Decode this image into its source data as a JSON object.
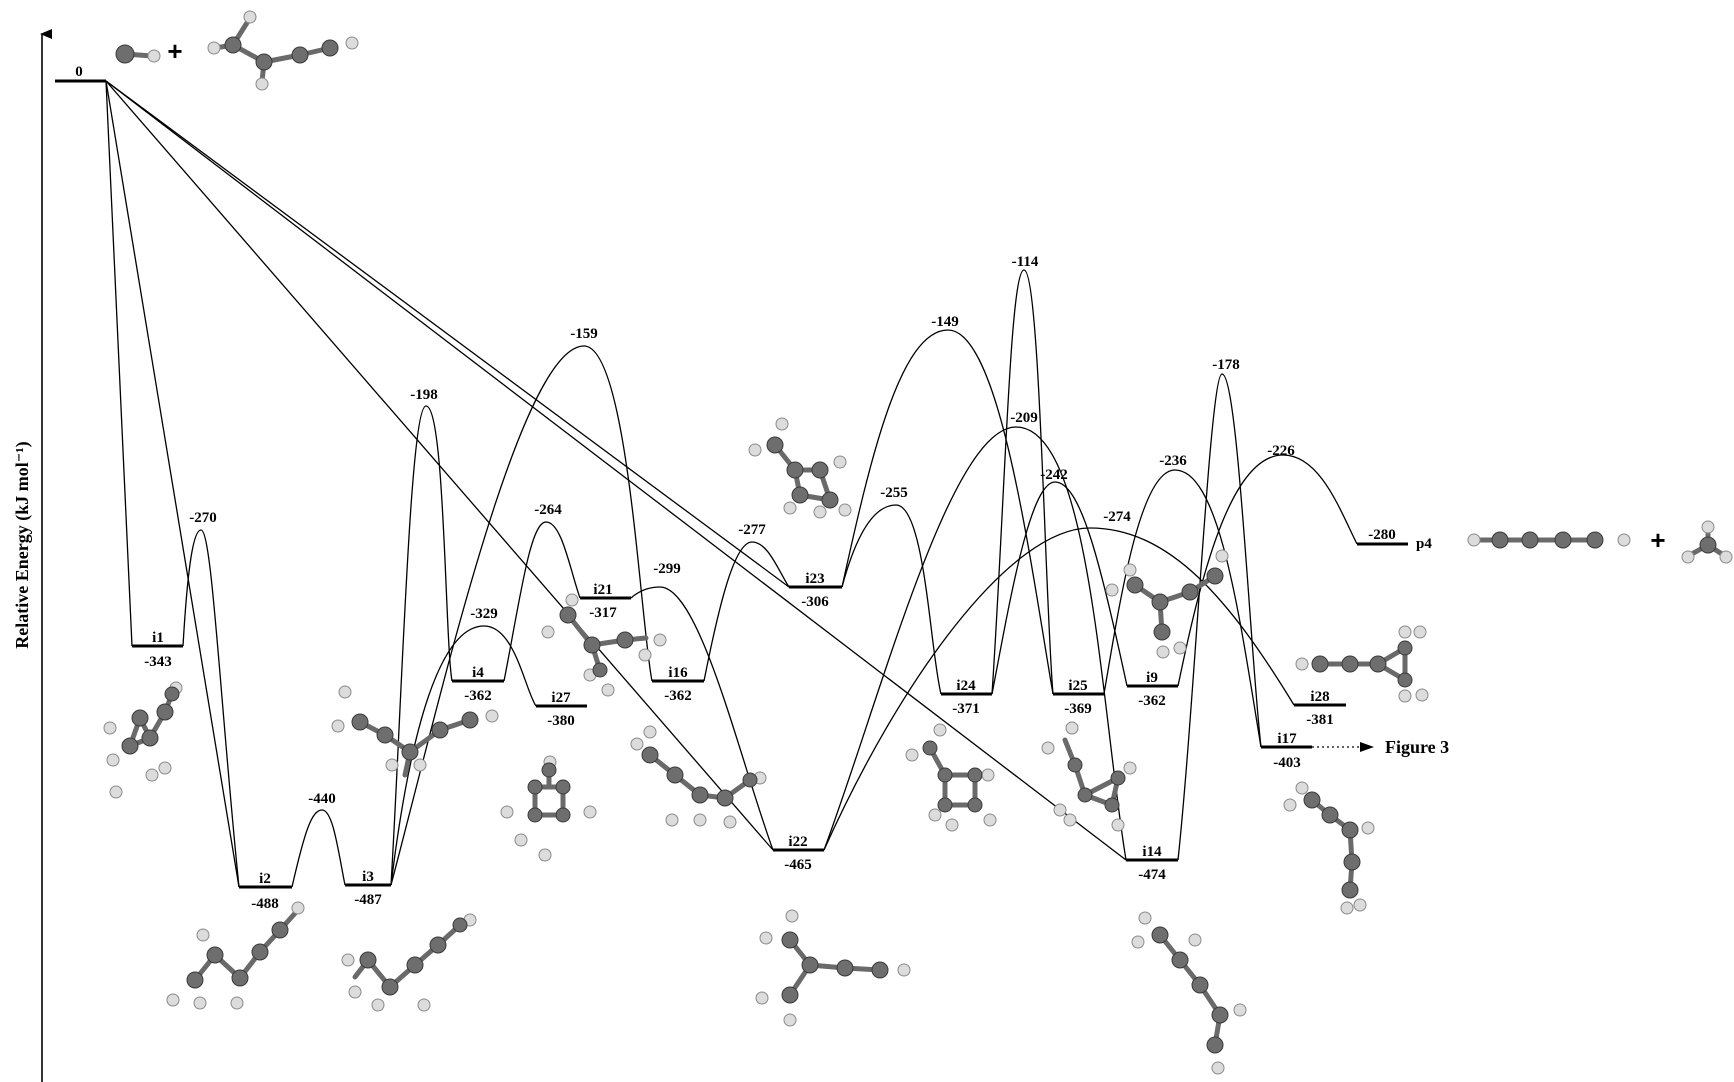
{
  "y_axis_label": "Relative Energy (kJ mol⁻¹)",
  "reactant": {
    "label": "0"
  },
  "intermediates": [
    {
      "id": "i1",
      "label": "i1",
      "energy": "-343"
    },
    {
      "id": "i2",
      "label": "i2",
      "energy": "-488"
    },
    {
      "id": "i3",
      "label": "i3",
      "energy": "-487"
    },
    {
      "id": "i4",
      "label": "i4",
      "energy": "-362"
    },
    {
      "id": "i27",
      "label": "i27",
      "energy": "-380"
    },
    {
      "id": "i21",
      "label": "i21",
      "energy": "-317"
    },
    {
      "id": "i16",
      "label": "i16",
      "energy": "-362"
    },
    {
      "id": "i22",
      "label": "i22",
      "energy": "-465"
    },
    {
      "id": "i23",
      "label": "i23",
      "energy": "-306"
    },
    {
      "id": "i24",
      "label": "i24",
      "energy": "-371"
    },
    {
      "id": "i25",
      "label": "i25",
      "energy": "-369"
    },
    {
      "id": "i9",
      "label": "i9",
      "energy": "-362"
    },
    {
      "id": "i14",
      "label": "i14",
      "energy": "-474"
    },
    {
      "id": "i28",
      "label": "i28",
      "energy": "-381"
    },
    {
      "id": "i17",
      "label": "i17",
      "energy": "-403"
    }
  ],
  "product": {
    "energy": "-280",
    "label": "p4"
  },
  "transition_states": [
    "-270",
    "-440",
    "-198",
    "-329",
    "-264",
    "-159",
    "-299",
    "-277",
    "-255",
    "-149",
    "-114",
    "-209",
    "-242",
    "-274",
    "-236",
    "-178",
    "-226"
  ],
  "figure_ref": "Figure 3",
  "plus_sign": "+"
}
